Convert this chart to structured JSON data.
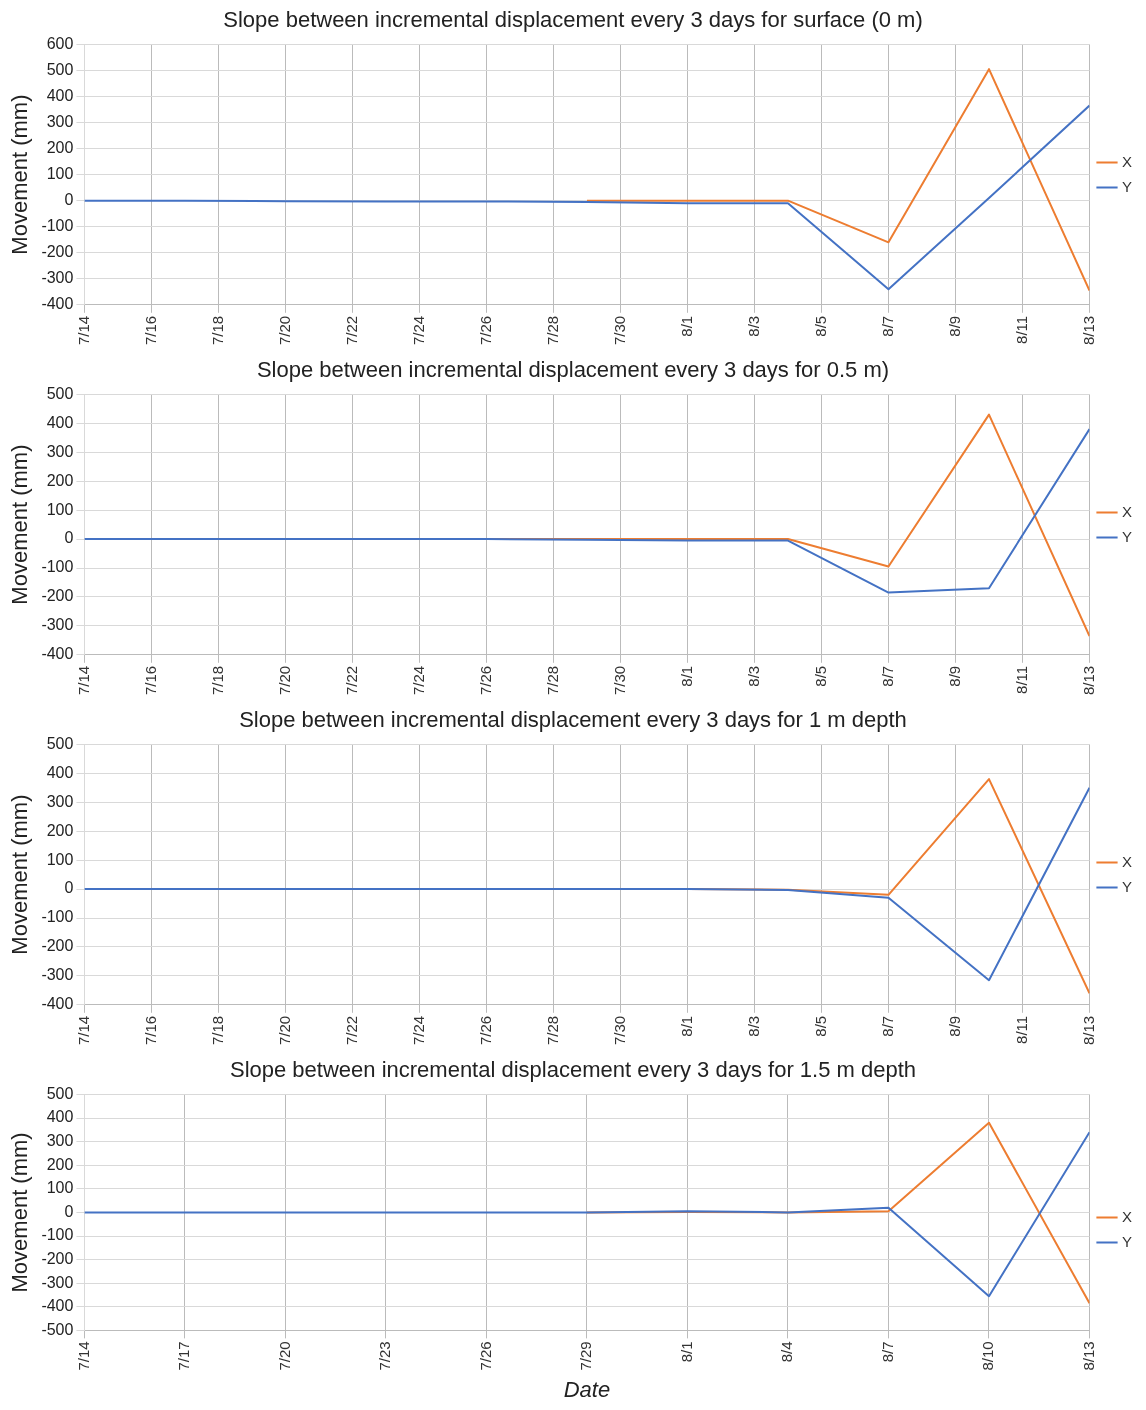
{
  "chart_data": [
    {
      "type": "line",
      "title": "Slope between incremental displacement every 3 days for surface (0 m)",
      "ylabel": "Movement (mm)",
      "x": [
        "--07-14",
        "--07-17",
        "--07-20",
        "--07-23",
        "--07-26",
        "--07-29",
        "--08-01",
        "--08-04",
        "--08-07",
        "--08-10",
        "--08-13"
      ],
      "series": [
        {
          "name": "X",
          "color": "#ed7d31",
          "values": [
            null,
            null,
            null,
            null,
            null,
            0,
            0,
            0,
            -160,
            505,
            -345
          ]
        },
        {
          "name": "Y",
          "color": "#4472c4",
          "values": [
            0,
            0,
            -2,
            -3,
            -3,
            -5,
            -10,
            -10,
            -340,
            10,
            365
          ]
        }
      ],
      "xlim": [
        "--07-14",
        "--08-13"
      ],
      "xticks": [
        {
          "value": "--07-14",
          "label": "7/14"
        },
        {
          "value": "--07-16",
          "label": "7/16"
        },
        {
          "value": "--07-18",
          "label": "7/18"
        },
        {
          "value": "--07-20",
          "label": "7/20"
        },
        {
          "value": "--07-22",
          "label": "7/22"
        },
        {
          "value": "--07-24",
          "label": "7/24"
        },
        {
          "value": "--07-26",
          "label": "7/26"
        },
        {
          "value": "--07-28",
          "label": "7/28"
        },
        {
          "value": "--07-30",
          "label": "7/30"
        },
        {
          "value": "--08-01",
          "label": "8/1"
        },
        {
          "value": "--08-03",
          "label": "8/3"
        },
        {
          "value": "--08-05",
          "label": "8/5"
        },
        {
          "value": "--08-07",
          "label": "8/7"
        },
        {
          "value": "--08-09",
          "label": "8/9"
        },
        {
          "value": "--08-11",
          "label": "8/11"
        },
        {
          "value": "--08-13",
          "label": "8/13"
        }
      ],
      "ylim": [
        -400,
        600
      ],
      "yticks": [
        -400,
        -300,
        -200,
        -100,
        0,
        100,
        200,
        300,
        400,
        500,
        600
      ],
      "grid": true,
      "legend": "right",
      "marker": "none",
      "line_style": "solid"
    },
    {
      "type": "line",
      "title": "Slope between incremental displacement every 3 days for 0.5 m)",
      "ylabel": "Movement (mm)",
      "x": [
        "--07-14",
        "--07-17",
        "--07-20",
        "--07-23",
        "--07-26",
        "--07-29",
        "--08-01",
        "--08-04",
        "--08-07",
        "--08-10",
        "--08-13"
      ],
      "series": [
        {
          "name": "X",
          "color": "#ed7d31",
          "values": [
            null,
            null,
            null,
            null,
            0,
            0,
            0,
            0,
            -95,
            430,
            -335
          ]
        },
        {
          "name": "Y",
          "color": "#4472c4",
          "values": [
            0,
            0,
            0,
            0,
            0,
            -2,
            -5,
            -5,
            -185,
            -170,
            380
          ]
        }
      ],
      "xlim": [
        "--07-14",
        "--08-13"
      ],
      "xticks": [
        {
          "value": "--07-14",
          "label": "7/14"
        },
        {
          "value": "--07-16",
          "label": "7/16"
        },
        {
          "value": "--07-18",
          "label": "7/18"
        },
        {
          "value": "--07-20",
          "label": "7/20"
        },
        {
          "value": "--07-22",
          "label": "7/22"
        },
        {
          "value": "--07-24",
          "label": "7/24"
        },
        {
          "value": "--07-26",
          "label": "7/26"
        },
        {
          "value": "--07-28",
          "label": "7/28"
        },
        {
          "value": "--07-30",
          "label": "7/30"
        },
        {
          "value": "--08-01",
          "label": "8/1"
        },
        {
          "value": "--08-03",
          "label": "8/3"
        },
        {
          "value": "--08-05",
          "label": "8/5"
        },
        {
          "value": "--08-07",
          "label": "8/7"
        },
        {
          "value": "--08-09",
          "label": "8/9"
        },
        {
          "value": "--08-11",
          "label": "8/11"
        },
        {
          "value": "--08-13",
          "label": "8/13"
        }
      ],
      "ylim": [
        -400,
        500
      ],
      "yticks": [
        -400,
        -300,
        -200,
        -100,
        0,
        100,
        200,
        300,
        400,
        500
      ],
      "grid": true,
      "legend": "right",
      "marker": "none",
      "line_style": "solid"
    },
    {
      "type": "line",
      "title": "Slope between incremental displacement every 3 days for 1 m depth",
      "ylabel": "Movement (mm)",
      "x": [
        "--07-14",
        "--07-17",
        "--07-20",
        "--07-23",
        "--07-26",
        "--07-29",
        "--08-01",
        "--08-04",
        "--08-07",
        "--08-10",
        "--08-13"
      ],
      "series": [
        {
          "name": "X",
          "color": "#ed7d31",
          "values": [
            null,
            null,
            null,
            null,
            null,
            null,
            0,
            -2,
            -20,
            380,
            -360
          ]
        },
        {
          "name": "Y",
          "color": "#4472c4",
          "values": [
            0,
            0,
            0,
            0,
            0,
            0,
            0,
            -3,
            -30,
            -315,
            350
          ]
        }
      ],
      "xlim": [
        "--07-14",
        "--08-13"
      ],
      "xticks": [
        {
          "value": "--07-14",
          "label": "7/14"
        },
        {
          "value": "--07-16",
          "label": "7/16"
        },
        {
          "value": "--07-18",
          "label": "7/18"
        },
        {
          "value": "--07-20",
          "label": "7/20"
        },
        {
          "value": "--07-22",
          "label": "7/22"
        },
        {
          "value": "--07-24",
          "label": "7/24"
        },
        {
          "value": "--07-26",
          "label": "7/26"
        },
        {
          "value": "--07-28",
          "label": "7/28"
        },
        {
          "value": "--07-30",
          "label": "7/30"
        },
        {
          "value": "--08-01",
          "label": "8/1"
        },
        {
          "value": "--08-03",
          "label": "8/3"
        },
        {
          "value": "--08-05",
          "label": "8/5"
        },
        {
          "value": "--08-07",
          "label": "8/7"
        },
        {
          "value": "--08-09",
          "label": "8/9"
        },
        {
          "value": "--08-11",
          "label": "8/11"
        },
        {
          "value": "--08-13",
          "label": "8/13"
        }
      ],
      "ylim": [
        -400,
        500
      ],
      "yticks": [
        -400,
        -300,
        -200,
        -100,
        0,
        100,
        200,
        300,
        400,
        500
      ],
      "grid": true,
      "legend": "right",
      "marker": "none",
      "line_style": "solid"
    },
    {
      "type": "line",
      "title": "Slope between incremental displacement every 3 days for 1.5 m depth",
      "ylabel": "Movement (mm)",
      "xlabel": "Date",
      "x": [
        "--07-14",
        "--07-17",
        "--07-20",
        "--07-23",
        "--07-26",
        "--07-29",
        "--08-01",
        "--08-04",
        "--08-07",
        "--08-10",
        "--08-13"
      ],
      "series": [
        {
          "name": "X",
          "color": "#ed7d31",
          "values": [
            null,
            null,
            null,
            null,
            null,
            0,
            2,
            0,
            5,
            380,
            -385
          ]
        },
        {
          "name": "Y",
          "color": "#4472c4",
          "values": [
            0,
            0,
            0,
            0,
            0,
            0,
            5,
            0,
            20,
            -355,
            340
          ]
        }
      ],
      "xlim": [
        "--07-14",
        "--08-13"
      ],
      "xticks": [
        {
          "value": "--07-14",
          "label": "7/14"
        },
        {
          "value": "--07-17",
          "label": "7/17"
        },
        {
          "value": "--07-20",
          "label": "7/20"
        },
        {
          "value": "--07-23",
          "label": "7/23"
        },
        {
          "value": "--07-26",
          "label": "7/26"
        },
        {
          "value": "--07-29",
          "label": "7/29"
        },
        {
          "value": "--08-01",
          "label": "8/1"
        },
        {
          "value": "--08-04",
          "label": "8/4"
        },
        {
          "value": "--08-07",
          "label": "8/7"
        },
        {
          "value": "--08-10",
          "label": "8/10"
        },
        {
          "value": "--08-13",
          "label": "8/13"
        }
      ],
      "ylim": [
        -500,
        500
      ],
      "yticks": [
        -500,
        -400,
        -300,
        -200,
        -100,
        0,
        100,
        200,
        300,
        400,
        500
      ],
      "grid": true,
      "legend": "right",
      "marker": "none",
      "line_style": "solid"
    }
  ]
}
